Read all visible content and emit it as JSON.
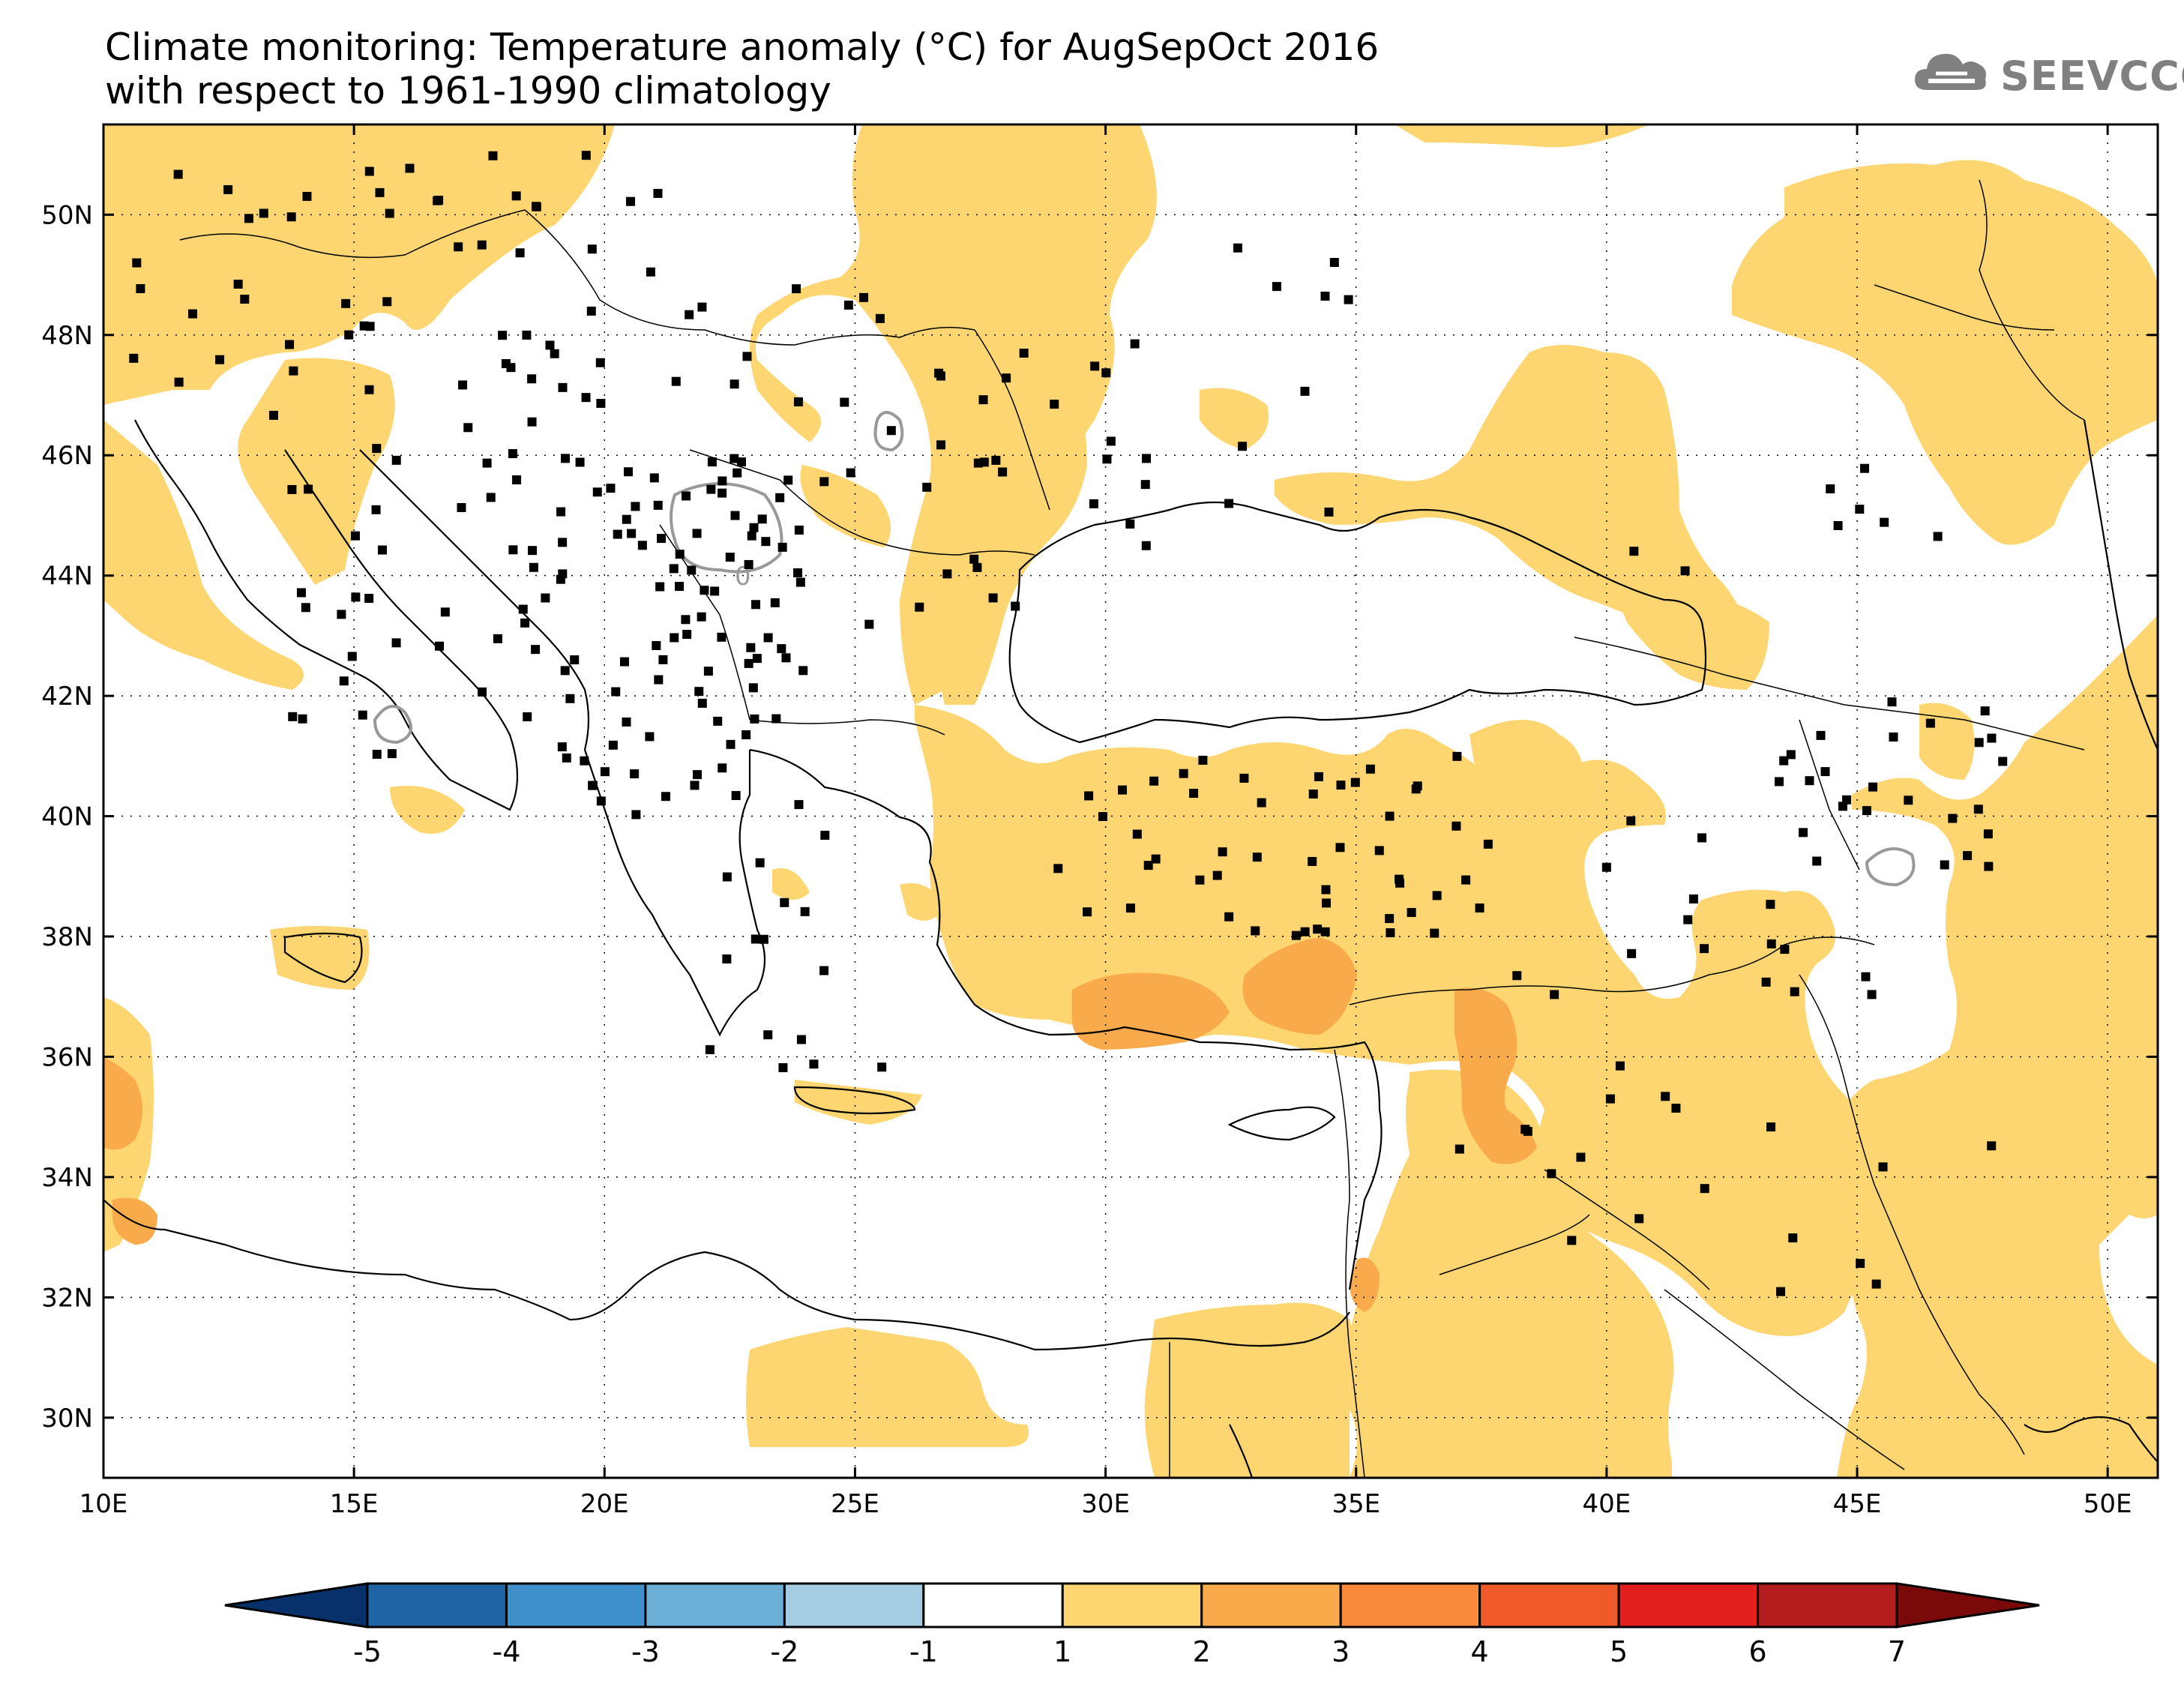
{
  "title": {
    "line1": "Climate monitoring: Temperature anomaly (°C) for AugSepOct 2016",
    "line2": "with respect to 1961-1990 climatology"
  },
  "logo": {
    "text": "SEEVCCC",
    "icon": "cloud-icon"
  },
  "map": {
    "lon_range": [
      10,
      51
    ],
    "lat_range": [
      29,
      51.5
    ],
    "lon_ticks": [
      {
        "value": 10,
        "label": "10E"
      },
      {
        "value": 15,
        "label": "15E"
      },
      {
        "value": 20,
        "label": "20E"
      },
      {
        "value": 25,
        "label": "25E"
      },
      {
        "value": 30,
        "label": "30E"
      },
      {
        "value": 35,
        "label": "35E"
      },
      {
        "value": 40,
        "label": "40E"
      },
      {
        "value": 45,
        "label": "45E"
      },
      {
        "value": 50,
        "label": "50E"
      }
    ],
    "lat_ticks": [
      {
        "value": 30,
        "label": "30N"
      },
      {
        "value": 32,
        "label": "32N"
      },
      {
        "value": 34,
        "label": "34N"
      },
      {
        "value": 36,
        "label": "36N"
      },
      {
        "value": 38,
        "label": "38N"
      },
      {
        "value": 40,
        "label": "40N"
      },
      {
        "value": 42,
        "label": "42N"
      },
      {
        "value": 44,
        "label": "44N"
      },
      {
        "value": 46,
        "label": "46N"
      },
      {
        "value": 48,
        "label": "48N"
      },
      {
        "value": 50,
        "label": "50N"
      }
    ],
    "contour_label": "0",
    "colors": {
      "class_1_2": "#fdd672",
      "class_2_3": "#f9ab4c",
      "coast": "#000000",
      "zero_contour": "#999999",
      "station": "#000000"
    }
  },
  "colorbar": {
    "colors": [
      "#08306b",
      "#1f65a6",
      "#3f8fca",
      "#6baed6",
      "#a4cde4",
      "#ffffff",
      "#fdd672",
      "#f9ab4c",
      "#f98a3b",
      "#f05a2a",
      "#e21f1f",
      "#b31d1d",
      "#7a0a0a"
    ],
    "labels": [
      "-5",
      "-4",
      "-3",
      "-2",
      "-1",
      "1",
      "2",
      "3",
      "4",
      "5",
      "6",
      "7"
    ]
  }
}
